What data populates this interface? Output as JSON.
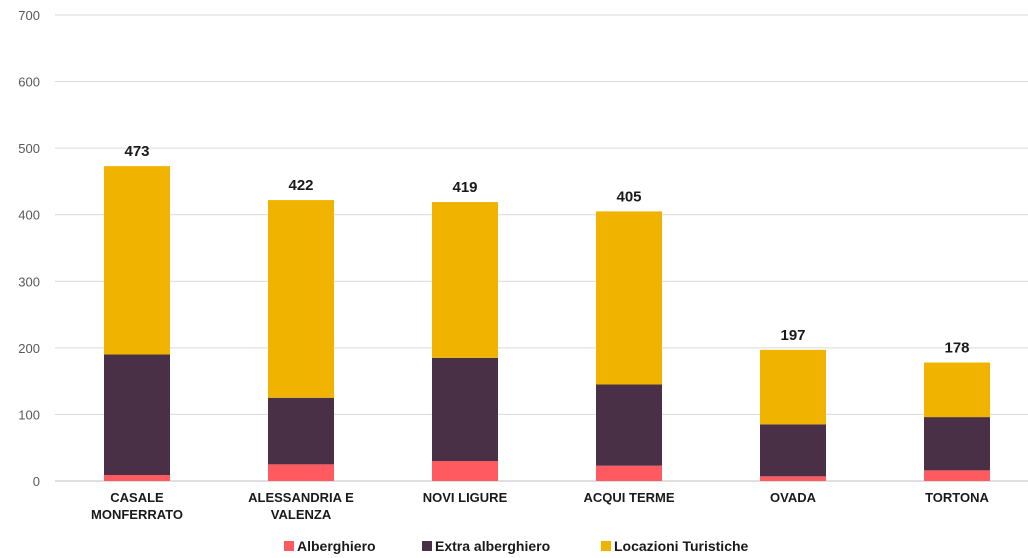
{
  "chart_data": {
    "type": "bar",
    "stacked": true,
    "categories": [
      [
        "CASALE",
        "MONFERRATO"
      ],
      [
        "ALESSANDRIA E",
        "VALENZA"
      ],
      [
        "NOVI LIGURE"
      ],
      [
        "ACQUI TERME"
      ],
      [
        "OVADA"
      ],
      [
        "TORTONA"
      ]
    ],
    "series": [
      {
        "name": "Alberghiero",
        "color": "#ff5a5f",
        "values": [
          9,
          25,
          30,
          23,
          7,
          16
        ]
      },
      {
        "name": "Extra alberghiero",
        "color": "#4a3047",
        "values": [
          181,
          100,
          155,
          122,
          78,
          80
        ]
      },
      {
        "name": "Locazioni Turistiche",
        "color": "#f0b400",
        "values": [
          283,
          297,
          234,
          260,
          112,
          82
        ]
      }
    ],
    "totals": [
      "473",
      "422",
      "419",
      "405",
      "197",
      "178"
    ],
    "ylim": [
      0,
      700
    ],
    "yticks": [
      "0",
      "100",
      "200",
      "300",
      "400",
      "500",
      "600",
      "700"
    ],
    "grid": true,
    "legend_position": "bottom"
  }
}
